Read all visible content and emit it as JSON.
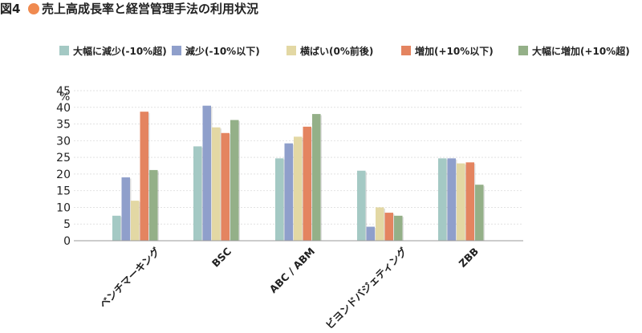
{
  "chart_data": {
    "type": "bar",
    "title": "図4●売上高成長率と経営管理手法の利用状況",
    "title_prefix": "図4",
    "title_marker_color": "#f08a50",
    "title_main": "売上高成長率と経営管理手法の利用状況",
    "ylabel": "%",
    "xlabel": "",
    "ylim": [
      0,
      45
    ],
    "yticks": [
      0,
      5,
      10,
      15,
      20,
      25,
      30,
      35,
      40,
      45
    ],
    "grid": true,
    "legend_position": "top",
    "categories": [
      "ベンチマーキング",
      "BSC",
      "ABC / ABM",
      "ビヨンドバジェティング",
      "ZBB"
    ],
    "series": [
      {
        "name": "大幅に減少(-10%超)",
        "color": "#a4c9c4",
        "values": [
          7.5,
          28.3,
          24.7,
          21.0,
          24.7
        ]
      },
      {
        "name": "減少(-10%以下)",
        "color": "#8f9fcb",
        "values": [
          19.0,
          40.5,
          29.2,
          4.2,
          24.7
        ]
      },
      {
        "name": "横ばい(0%前後)",
        "color": "#e3d8a4",
        "values": [
          12.0,
          34.0,
          31.2,
          10.0,
          23.2
        ]
      },
      {
        "name": "増加(+10%以下)",
        "color": "#e48460",
        "values": [
          38.7,
          32.3,
          34.2,
          8.4,
          23.5
        ]
      },
      {
        "name": "大幅に増加(+10%超)",
        "color": "#94b088",
        "values": [
          21.2,
          36.2,
          38.0,
          7.5,
          16.8
        ]
      }
    ]
  }
}
